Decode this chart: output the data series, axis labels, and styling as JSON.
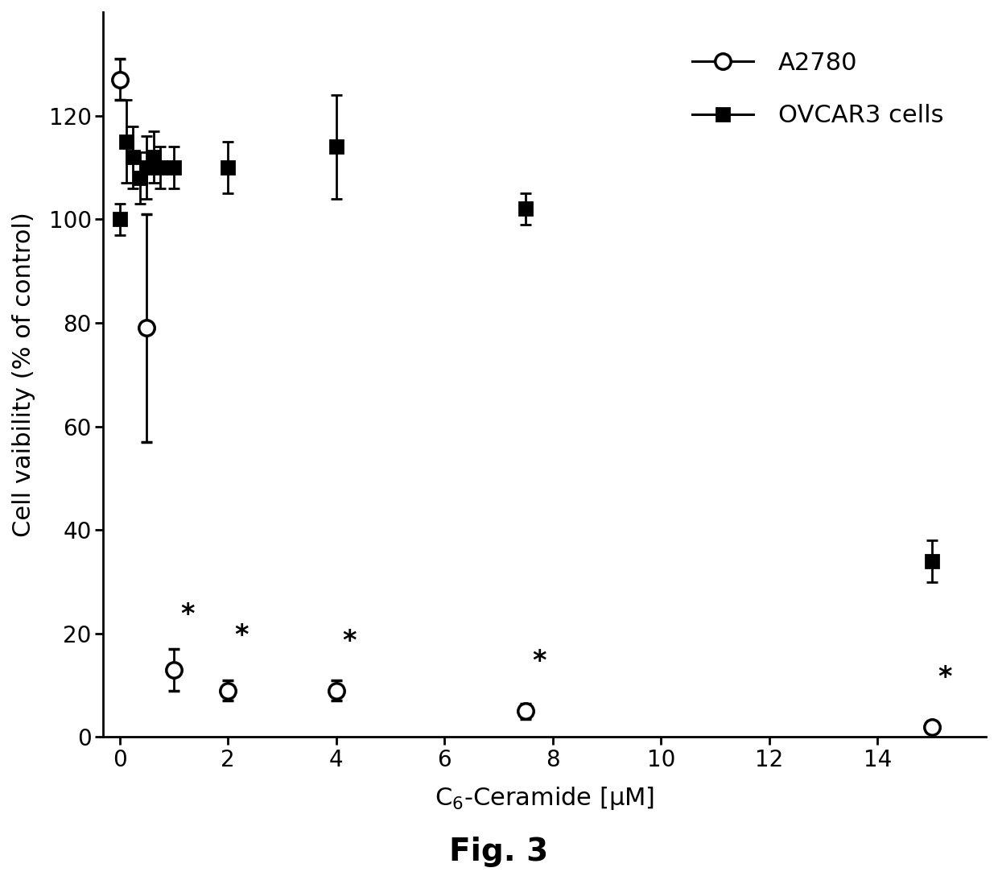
{
  "a2780_x": [
    0,
    0.5,
    1,
    2,
    4,
    7.5,
    15
  ],
  "a2780_y": [
    127,
    79,
    13,
    9,
    9,
    5,
    2
  ],
  "a2780_yerr": [
    4,
    22,
    4,
    2,
    2,
    1.5,
    1
  ],
  "ovcar3_x": [
    0,
    0.125,
    0.25,
    0.375,
    0.5,
    0.625,
    0.75,
    1,
    2,
    4,
    7.5,
    15
  ],
  "ovcar3_y": [
    100,
    115,
    112,
    108,
    110,
    112,
    110,
    110,
    110,
    114,
    102,
    34
  ],
  "ovcar3_yerr": [
    3,
    8,
    6,
    5,
    6,
    5,
    4,
    4,
    5,
    10,
    3,
    4
  ],
  "asterisk_x": [
    1,
    2,
    4,
    7.5,
    15
  ],
  "asterisk_y_above": [
    19,
    15,
    14,
    10,
    7
  ],
  "xlabel": "C$_6$-Ceramide [μM]",
  "ylabel": "Cell vaibility (% of control)",
  "xlim": [
    -0.3,
    16
  ],
  "ylim": [
    0,
    140
  ],
  "yticks": [
    0,
    20,
    40,
    60,
    80,
    100,
    120
  ],
  "xticks": [
    0,
    2,
    4,
    6,
    8,
    10,
    12,
    14
  ],
  "legend_labels": [
    "A2780",
    "OVCAR3 cells"
  ],
  "figure_label": "Fig. 3",
  "line_color": "#000000",
  "marker_size_circle": 14,
  "marker_size_square": 12,
  "linewidth": 2.2,
  "background_color": "#ffffff"
}
